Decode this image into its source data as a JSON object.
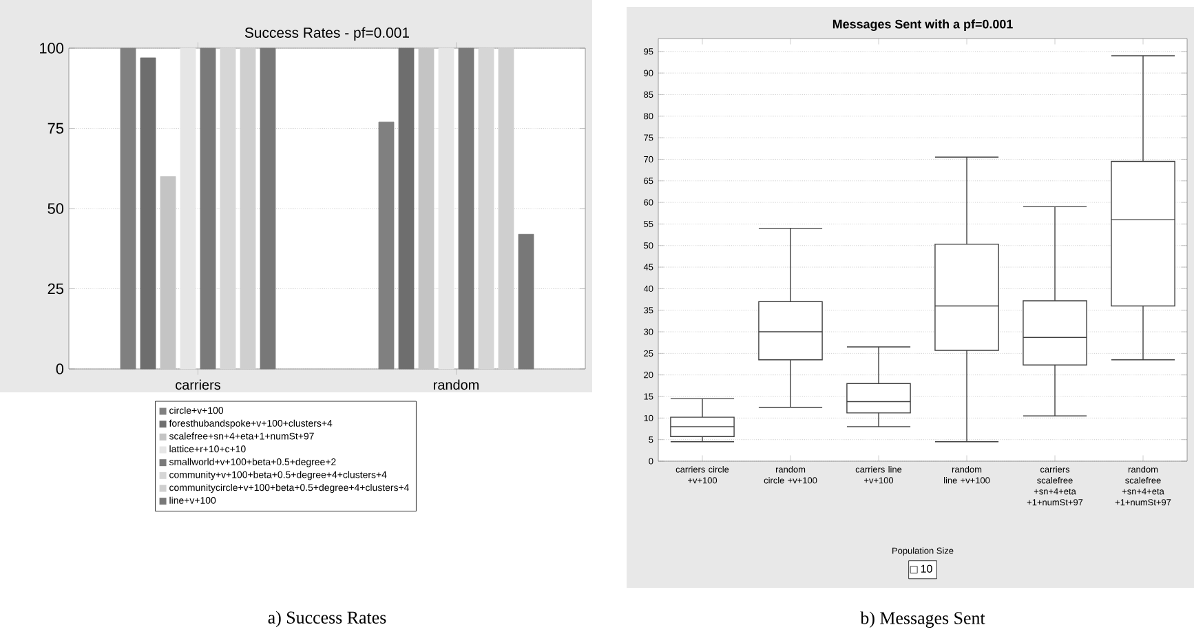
{
  "chart_data": [
    {
      "type": "bar",
      "title": "Success Rates - pf=0.001",
      "categories": [
        "carriers",
        "random"
      ],
      "series": [
        {
          "name": "circle+v+100",
          "color": "#808080",
          "values": [
            100,
            77
          ]
        },
        {
          "name": "foresthubandspoke+v+100+clusters+4",
          "color": "#6e6e6e",
          "values": [
            97,
            100
          ]
        },
        {
          "name": "scalefree+sn+4+eta+1+numSt+97",
          "color": "#c4c4c4",
          "values": [
            60,
            100
          ]
        },
        {
          "name": "lattice+r+10+c+10",
          "color": "#e6e6e6",
          "values": [
            100,
            100
          ]
        },
        {
          "name": "smallworld+v+100+beta+0.5+degree+2",
          "color": "#7a7a7a",
          "values": [
            100,
            100
          ]
        },
        {
          "name": "community+v+100+beta+0.5+degree+4+clusters+4",
          "color": "#d6d6d6",
          "values": [
            100,
            100
          ]
        },
        {
          "name": "communitycircle+v+100+beta+0.5+degree+4+clusters+4",
          "color": "#cfcfcf",
          "values": [
            100,
            100
          ]
        },
        {
          "name": "line+v+100",
          "color": "#787878",
          "values": [
            100,
            42
          ]
        }
      ],
      "ylim": [
        0,
        100
      ],
      "yticks": [
        0,
        25,
        50,
        75,
        100
      ],
      "grid": "y",
      "legend": "bottom",
      "annotations": [
        "a) Success Rates"
      ]
    },
    {
      "type": "box",
      "title": "Messages Sent with a pf=0.001",
      "categories": [
        "carriers circle +v+100",
        "random circle +v+100",
        "carriers line +v+100",
        "random line +v+100",
        "carriers scalefree +sn+4+eta +1+numSt+97",
        "random scalefree +sn+4+eta +1+numSt+97"
      ],
      "series": [
        {
          "name": "10",
          "color": "#ffffff",
          "boxes": [
            {
              "low": 4.5,
              "q1": 5.7,
              "median": 8,
              "q3": 10.2,
              "high": 14.5
            },
            {
              "low": 12.5,
              "q1": 23.5,
              "median": 30,
              "q3": 37,
              "high": 54
            },
            {
              "low": 8,
              "q1": 11.2,
              "median": 13.8,
              "q3": 18,
              "high": 26.5
            },
            {
              "low": 4.5,
              "q1": 25.7,
              "median": 36,
              "q3": 50.3,
              "high": 70.5
            },
            {
              "low": 10.5,
              "q1": 22.3,
              "median": 28.7,
              "q3": 37.2,
              "high": 59
            },
            {
              "low": 23.5,
              "q1": 36,
              "median": 56,
              "q3": 69.5,
              "high": 94
            }
          ]
        }
      ],
      "ylim": [
        0,
        98
      ],
      "yticks": [
        0,
        5,
        10,
        15,
        20,
        25,
        30,
        35,
        40,
        45,
        50,
        55,
        60,
        65,
        70,
        75,
        80,
        85,
        90,
        95
      ],
      "grid": "y",
      "legend": "bottom",
      "legend_title": "Population Size",
      "annotations": [
        "b) Messages Sent"
      ]
    }
  ]
}
